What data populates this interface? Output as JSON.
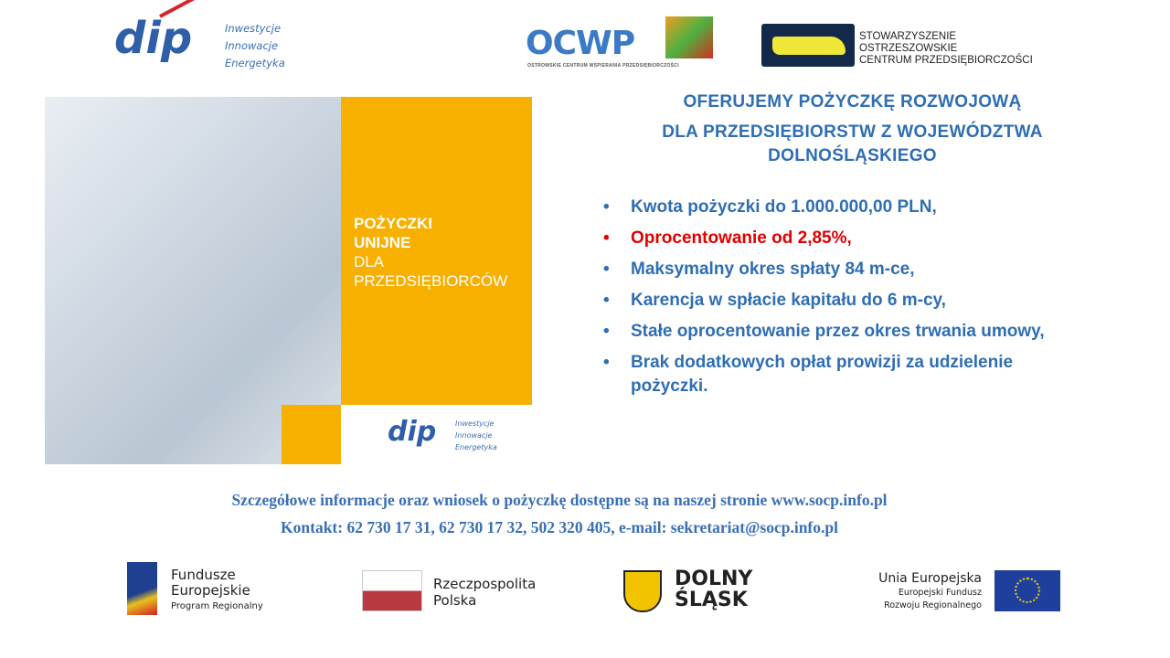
{
  "logos": {
    "dip": {
      "mark": "dip",
      "lines": [
        "Inwestycje",
        "Innowacje",
        "Energetyka"
      ]
    },
    "ocwp": {
      "mark": "OCWP",
      "subtitle": "OSTROWSKIE CENTRUM WSPIERANIA PRZEDSIĘBIORCZOŚCI"
    },
    "socp": {
      "lines": [
        "STOWARZYSZENIE",
        "OSTRZESZOWSKIE",
        "CENTRUM PRZEDSIĘBIORCZOŚCI"
      ]
    },
    "fe": {
      "lines": [
        "Fundusze",
        "Europejskie",
        "Program Regionalny"
      ]
    },
    "rp": {
      "lines": [
        "Rzeczpospolita",
        "Polska"
      ]
    },
    "ds": {
      "lines": [
        "DOLNY",
        "ŚLĄSK"
      ]
    },
    "ue": {
      "lines": [
        "Unia Europejska",
        "Europejski Fundusz",
        "Rozwoju Regionalnego"
      ]
    }
  },
  "banner": {
    "line1": "POŻYCZKI",
    "line2": "UNIJNE",
    "line3": "DLA",
    "line4": "PRZEDSIĘBIORCÓW"
  },
  "headline": {
    "line1": "OFERUJEMY  POŻYCZKĘ  ROZWOJOWĄ",
    "line2": "DLA PRZEDSIĘBIORSTW  Z WOJEWÓDZTWA",
    "line3": "DOLNOŚLĄSKIEGO"
  },
  "bullets": [
    "Kwota pożyczki do 1.000.000,00 PLN,",
    "Oprocentowanie od 2,85%,",
    "Maksymalny okres spłaty 84 m-ce,",
    "Karencja w spłacie kapitału do 6 m-cy,",
    "Stałe oprocentowanie przez okres trwania umowy,",
    "Brak dodatkowych opłat  prowizji  za udzielenie pożyczki."
  ],
  "bullet_symbol": "•",
  "footer": {
    "info": "Szczegółowe informacje oraz wniosek o pożyczkę dostępne są na naszej stronie www.socp.info.pl",
    "contact": "Kontakt: 62 730 17 31, 62 730 17 32, 502 320 405, e-mail: sekretariat@socp.info.pl"
  },
  "colors": {
    "blue": "#2f6eb4",
    "red": "#e00000",
    "yellow": "#f7b000"
  }
}
